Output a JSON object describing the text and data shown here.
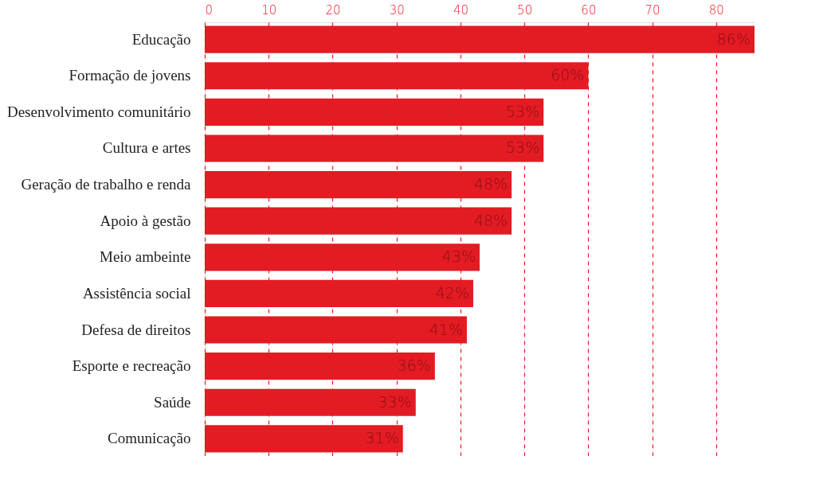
{
  "chart_data": {
    "type": "bar",
    "orientation": "horizontal",
    "categories": [
      "Educação",
      "Formação de jovens",
      "Desenvolvimento comunitário",
      "Cultura e artes",
      "Geração de trabalho e renda",
      "Apoio à gestão",
      "Meio ambeinte",
      "Assistência social",
      "Defesa de direitos",
      "Esporte e recreação",
      "Saúde",
      "Comunicação"
    ],
    "values": [
      86,
      60,
      53,
      53,
      48,
      48,
      43,
      42,
      41,
      36,
      33,
      31
    ],
    "value_labels": [
      "86%",
      "60%",
      "53%",
      "53%",
      "48%",
      "48%",
      "43%",
      "42%",
      "41%",
      "36%",
      "33%",
      "31%"
    ],
    "color": "#e31b23",
    "xlim": [
      0,
      86
    ],
    "xticks": [
      0,
      10,
      20,
      30,
      40,
      50,
      60,
      70,
      80
    ],
    "grid": true
  }
}
